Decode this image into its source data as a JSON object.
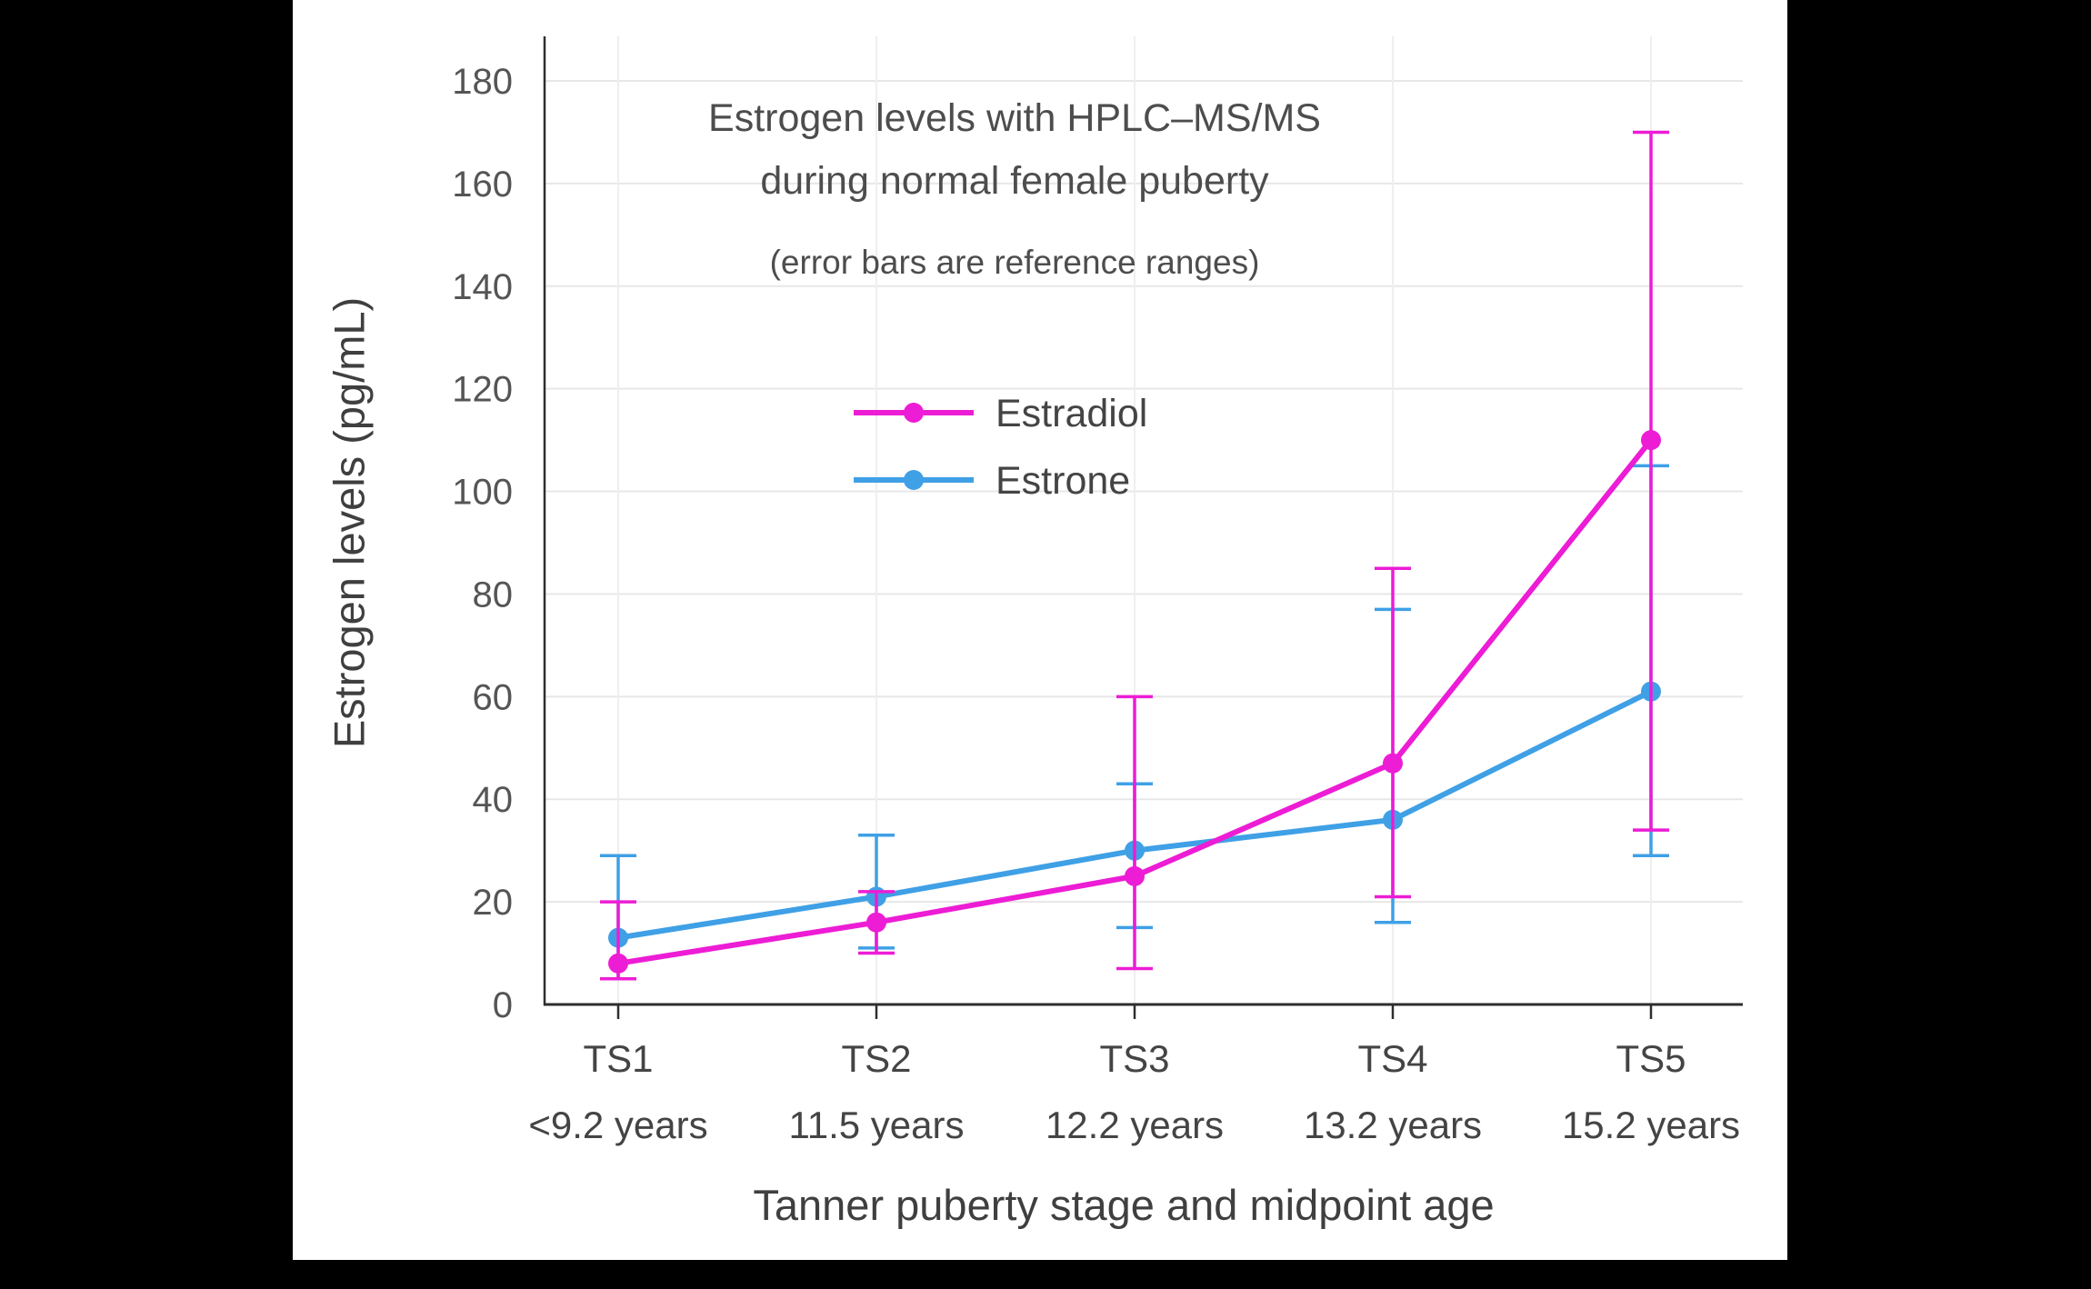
{
  "page": {
    "background": "#000000",
    "panel_background": "#ffffff"
  },
  "chart_data": {
    "type": "line",
    "title": "Estrogen levels with HPLC–MS/MS\nduring normal female puberty",
    "subtitle": "(error bars are reference ranges)",
    "xlabel": "Tanner puberty stage and midpoint age",
    "ylabel": "Estrogen levels (pg/mL)",
    "categories": [
      "TS1",
      "TS2",
      "TS3",
      "TS4",
      "TS5"
    ],
    "category_ages": [
      "<9.2 years",
      "11.5 years",
      "12.2 years",
      "13.2 years",
      "15.2 years"
    ],
    "ylim": [
      0,
      185
    ],
    "yticks": [
      0,
      20,
      40,
      60,
      80,
      100,
      120,
      140,
      160,
      180
    ],
    "grid": true,
    "legend_position": "upper-left-inside",
    "series": [
      {
        "name": "Estradiol",
        "color": "#ed1cd5",
        "values": [
          8,
          16,
          25,
          47,
          110
        ],
        "err_low": [
          5,
          10,
          7,
          21,
          34
        ],
        "err_high": [
          20,
          22,
          60,
          85,
          170
        ]
      },
      {
        "name": "Estrone",
        "color": "#3fa0e6",
        "values": [
          13,
          21,
          30,
          36,
          61
        ],
        "err_low": [
          5,
          11,
          15,
          16,
          29
        ],
        "err_high": [
          29,
          33,
          43,
          77,
          105
        ]
      }
    ],
    "colors": {
      "grid_h": "#e7e7e7",
      "grid_v": "#efefef",
      "axis": "#2e2e2e",
      "tick_text": "#555555",
      "label_text": "#444444"
    }
  }
}
